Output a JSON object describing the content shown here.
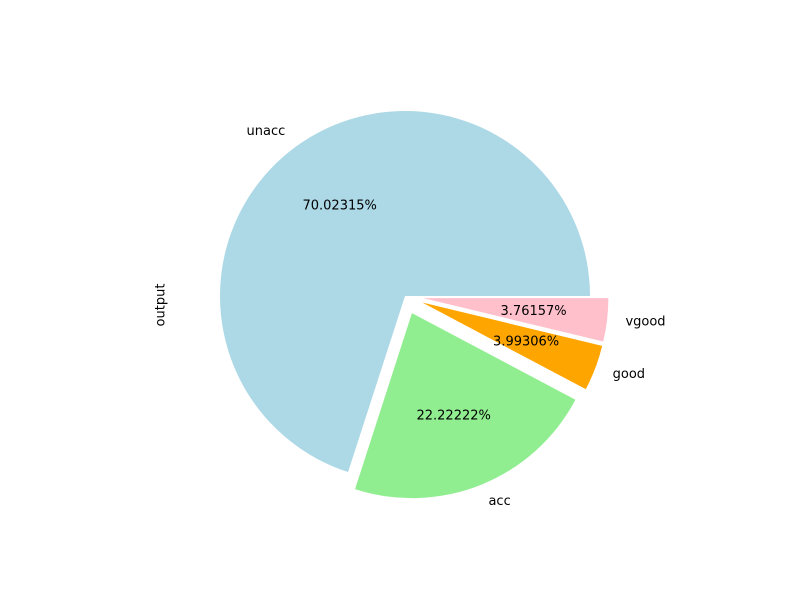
{
  "chart_data": {
    "type": "pie",
    "title": "",
    "ylabel": "output",
    "start_angle_deg": 0,
    "direction": "counterclockwise",
    "slices": [
      {
        "label": "unacc",
        "value": 70.02315,
        "pct_label": "70.02315%",
        "color": "#add8e6",
        "exploded": false
      },
      {
        "label": "acc",
        "value": 22.22222,
        "pct_label": "22.22222%",
        "color": "#90ee90",
        "exploded": true
      },
      {
        "label": "good",
        "value": 3.99306,
        "pct_label": "3.99306%",
        "color": "#ffa500",
        "exploded": true
      },
      {
        "label": "vgood",
        "value": 3.76157,
        "pct_label": "3.76157%",
        "color": "#ffc0cb",
        "exploded": true
      }
    ]
  }
}
